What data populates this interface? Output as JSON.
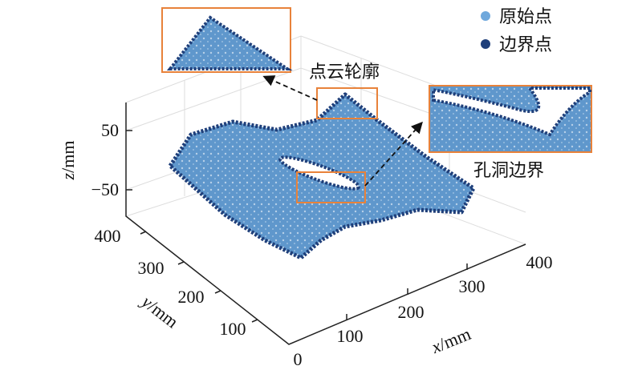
{
  "legend": {
    "items": [
      {
        "label": "原始点",
        "color": "#6fa8dc"
      },
      {
        "label": "边界点",
        "color": "#1f3f7a"
      }
    ]
  },
  "annotations": {
    "contour": "点云轮廓",
    "hole": "孔洞边界"
  },
  "axes": {
    "x": {
      "var": "x",
      "unit": "/mm",
      "ticks": [
        "100",
        "200",
        "300",
        "400"
      ]
    },
    "y": {
      "var": "y",
      "unit": "/mm",
      "ticks": [
        "0",
        "100",
        "200",
        "300",
        "400"
      ]
    },
    "z": {
      "var": "z",
      "unit": "/mm",
      "ticks": [
        "50",
        "−50"
      ]
    }
  }
}
